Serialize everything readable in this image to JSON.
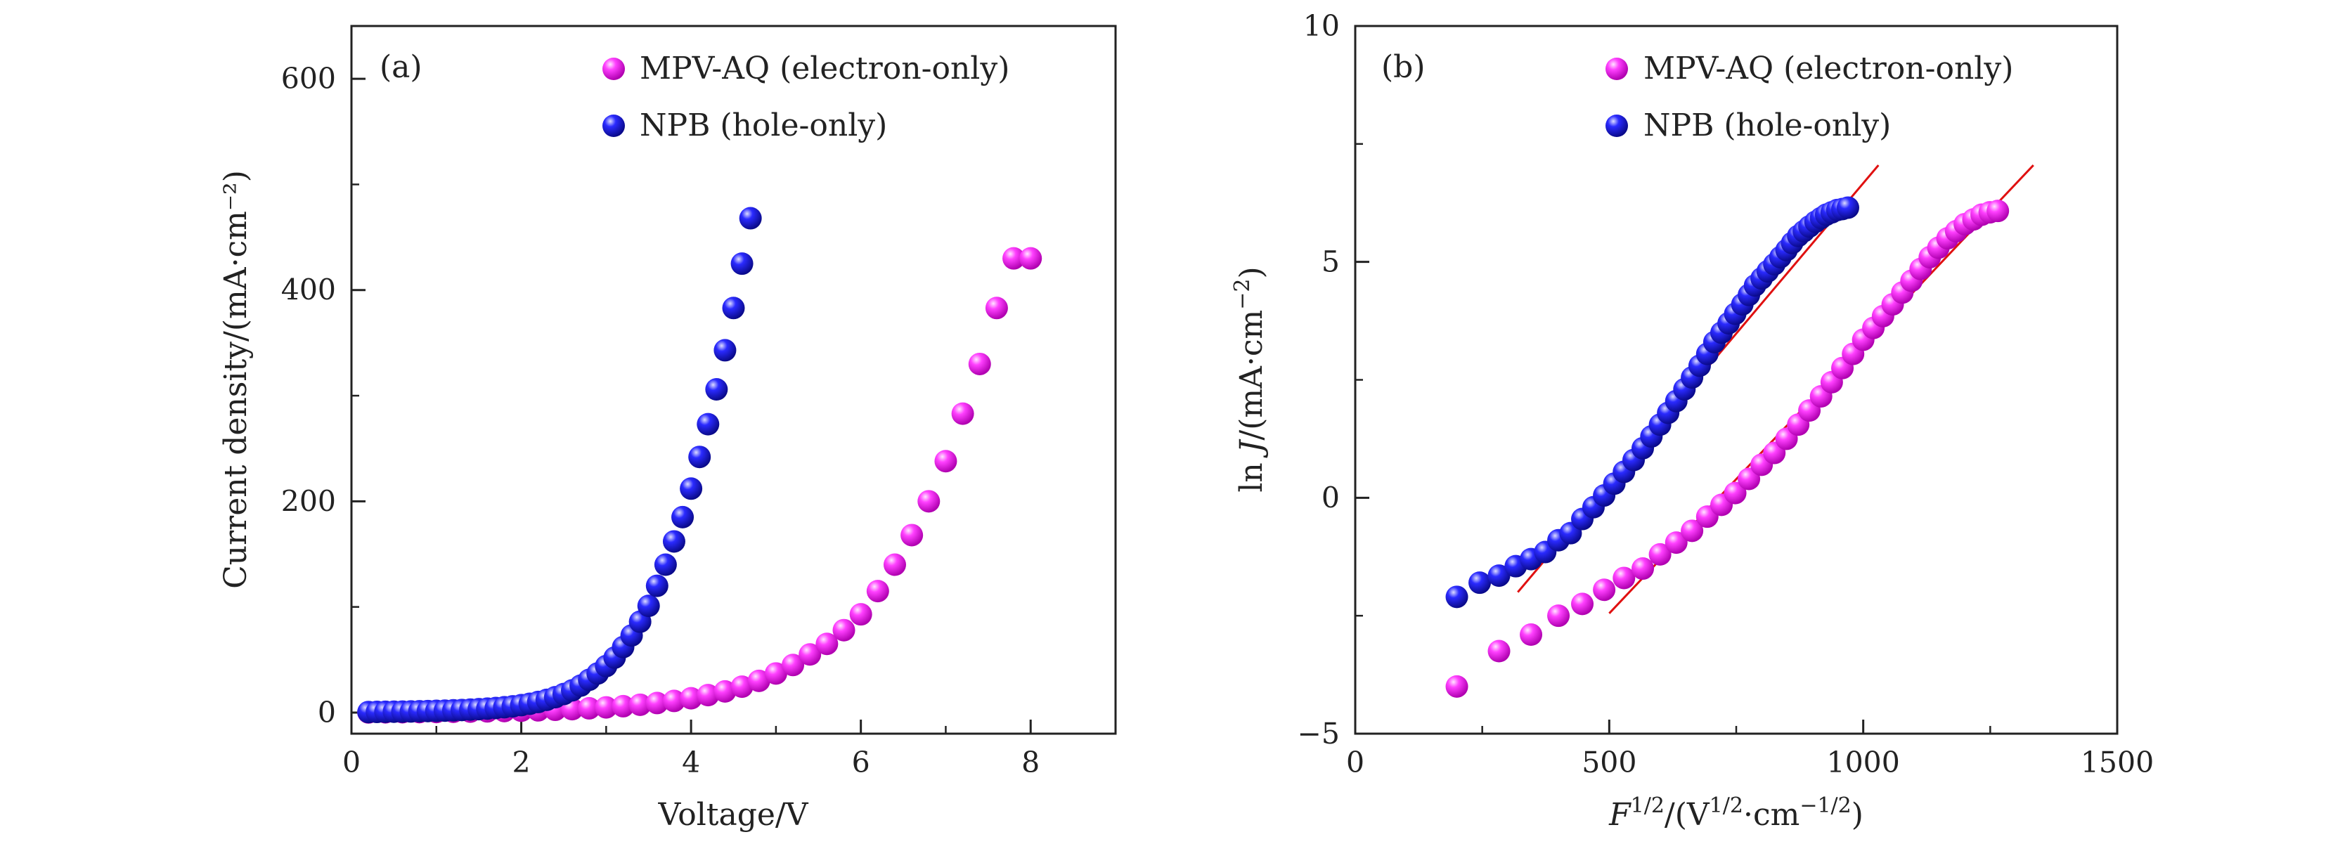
{
  "colors": {
    "mpv": "#ff00ff",
    "npb": "#1515e6",
    "fit": "#e01010",
    "axis": "#222222"
  },
  "chart_data": [
    {
      "type": "scatter",
      "panel_label": "(a)",
      "xlabel": "Voltage/V",
      "ylabel": "Current density/(mA·cm⁻²)",
      "xlim": [
        0,
        9
      ],
      "ylim": [
        -20,
        650
      ],
      "xticks": [
        0,
        2,
        4,
        6,
        8
      ],
      "xtick_labels": [
        "0",
        "2",
        "4",
        "6",
        "8"
      ],
      "yticks": [
        0,
        200,
        400,
        600
      ],
      "ytick_labels": [
        "0",
        "200",
        "400",
        "600"
      ],
      "legend_position": "top-right",
      "series": [
        {
          "name": "MPV-AQ (electron-only)",
          "color": "#ff00ff",
          "x": [
            0.2,
            0.4,
            0.6,
            0.8,
            1.0,
            1.2,
            1.4,
            1.6,
            1.8,
            2.0,
            2.2,
            2.4,
            2.6,
            2.8,
            3.0,
            3.2,
            3.4,
            3.6,
            3.8,
            4.0,
            4.2,
            4.4,
            4.6,
            4.8,
            5.0,
            5.2,
            5.4,
            5.6,
            5.8,
            6.0,
            6.2,
            6.4,
            6.6,
            6.8,
            7.0,
            7.2,
            7.4,
            7.6,
            7.8,
            8.0
          ],
          "y": [
            0.1,
            0.2,
            0.3,
            0.4,
            0.5,
            0.7,
            0.9,
            1.1,
            1.4,
            1.7,
            2.1,
            2.6,
            3.2,
            4.0,
            4.9,
            6,
            7.4,
            9,
            11,
            13.5,
            16.5,
            20,
            24.5,
            30,
            37,
            45,
            55,
            65,
            78,
            93,
            115,
            140,
            168,
            200,
            238,
            283,
            330,
            383,
            430,
            430
          ],
          "y_note": ""
        },
        {
          "name": "NPB (hole-only)",
          "color": "#1515e6",
          "x": [
            0.2,
            0.3,
            0.4,
            0.5,
            0.6,
            0.7,
            0.8,
            0.9,
            1.0,
            1.1,
            1.2,
            1.3,
            1.4,
            1.5,
            1.6,
            1.7,
            1.8,
            1.9,
            2.0,
            2.1,
            2.2,
            2.3,
            2.4,
            2.5,
            2.6,
            2.7,
            2.8,
            2.9,
            3.0,
            3.1,
            3.2,
            3.3,
            3.4,
            3.5,
            3.6,
            3.7,
            3.8,
            3.9,
            4.0,
            4.1,
            4.2,
            4.3,
            4.4,
            4.5,
            4.6,
            4.7
          ],
          "y": [
            0.5,
            0.6,
            0.7,
            0.8,
            0.9,
            1.0,
            1.2,
            1.4,
            1.6,
            1.8,
            2.1,
            2.4,
            2.8,
            3.2,
            3.7,
            4.3,
            5.0,
            5.9,
            7,
            8.3,
            10,
            12,
            14.5,
            17.5,
            21,
            25.5,
            31,
            37,
            44,
            52,
            62,
            73,
            86,
            101,
            120,
            140,
            162,
            185,
            212,
            242,
            273,
            306,
            343,
            383,
            425,
            468
          ]
        }
      ]
    },
    {
      "type": "scatter",
      "panel_label": "(b)",
      "xlabel": "F^{1/2}/(V^{1/2}·cm^{−1/2})",
      "ylabel": "ln J/(mA·cm⁻²)",
      "xlim": [
        0,
        1500
      ],
      "ylim": [
        -5,
        10
      ],
      "xticks": [
        0,
        500,
        1000,
        1500
      ],
      "xtick_labels": [
        "0",
        "500",
        "1000",
        "1500"
      ],
      "yticks": [
        -5,
        0,
        5,
        10
      ],
      "ytick_labels": [
        "−5",
        "0",
        "5",
        "10"
      ],
      "legend_position": "top-right",
      "series": [
        {
          "name": "MPV-AQ (electron-only)",
          "color": "#ff00ff",
          "x": [
            200,
            283,
            346,
            400,
            447,
            490,
            529,
            566,
            600,
            632,
            663,
            693,
            721,
            748,
            775,
            800,
            825,
            849,
            872,
            894,
            917,
            938,
            959,
            980,
            1000,
            1020,
            1039,
            1058,
            1077,
            1095,
            1113,
            1131,
            1148,
            1166,
            1183,
            1200,
            1217,
            1233,
            1249,
            1265
          ],
          "y": [
            -4.0,
            -3.25,
            -2.9,
            -2.5,
            -2.25,
            -1.95,
            -1.7,
            -1.5,
            -1.2,
            -0.95,
            -0.7,
            -0.4,
            -0.15,
            0.1,
            0.4,
            0.7,
            0.95,
            1.25,
            1.55,
            1.85,
            2.15,
            2.45,
            2.75,
            3.05,
            3.35,
            3.6,
            3.85,
            4.1,
            4.35,
            4.6,
            4.85,
            5.1,
            5.3,
            5.5,
            5.65,
            5.8,
            5.9,
            6.0,
            6.05,
            6.08
          ]
        },
        {
          "name": "NPB (hole-only)",
          "color": "#1515e6",
          "x": [
            200,
            245,
            283,
            316,
            346,
            374,
            400,
            424,
            447,
            469,
            490,
            510,
            529,
            548,
            566,
            583,
            600,
            616,
            632,
            648,
            663,
            678,
            693,
            707,
            721,
            735,
            748,
            762,
            775,
            787,
            800,
            812,
            825,
            837,
            849,
            860,
            872,
            883,
            894,
            906,
            917,
            927,
            938,
            949,
            959,
            970
          ],
          "y": [
            -2.1,
            -1.8,
            -1.65,
            -1.45,
            -1.3,
            -1.15,
            -0.9,
            -0.75,
            -0.45,
            -0.2,
            0.05,
            0.3,
            0.55,
            0.8,
            1.05,
            1.3,
            1.55,
            1.8,
            2.05,
            2.3,
            2.55,
            2.8,
            3.05,
            3.3,
            3.5,
            3.7,
            3.9,
            4.1,
            4.3,
            4.5,
            4.65,
            4.8,
            4.95,
            5.1,
            5.25,
            5.4,
            5.55,
            5.65,
            5.75,
            5.85,
            5.93,
            6.0,
            6.05,
            6.1,
            6.12,
            6.15
          ]
        }
      ],
      "fit_lines": [
        {
          "series": "NPB (hole-only)",
          "x": [
            320,
            1030
          ],
          "y": [
            -2.0,
            7.05
          ]
        },
        {
          "series": "MPV-AQ (electron-only)",
          "x": [
            500,
            1335
          ],
          "y": [
            -2.45,
            7.05
          ]
        }
      ]
    }
  ]
}
